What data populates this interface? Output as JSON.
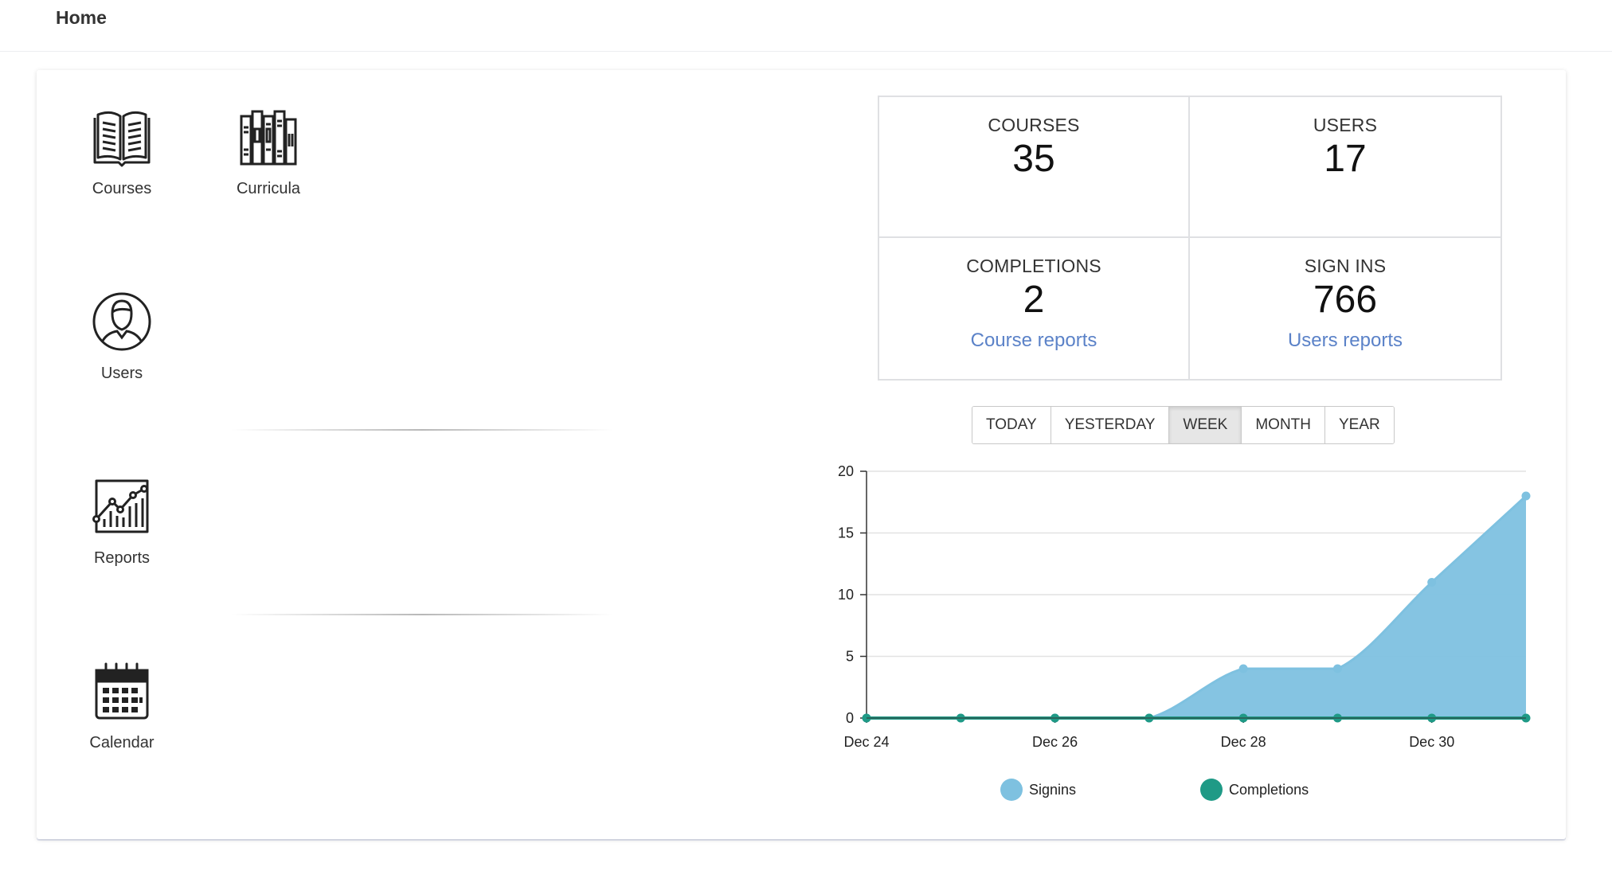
{
  "header": {
    "title": "Home"
  },
  "tiles": [
    {
      "label": "Courses",
      "icon": "open-book-icon"
    },
    {
      "label": "Curricula",
      "icon": "bookshelf-icon"
    },
    {
      "label": "Users",
      "icon": "user-avatar-icon"
    },
    {
      "label": "Reports",
      "icon": "line-chart-icon"
    },
    {
      "label": "Calendar",
      "icon": "calendar-icon"
    }
  ],
  "stats": {
    "courses": {
      "label": "COURSES",
      "value": "35"
    },
    "users": {
      "label": "USERS",
      "value": "17"
    },
    "completions": {
      "label": "COMPLETIONS",
      "value": "2",
      "link": "Course reports"
    },
    "signins": {
      "label": "SIGN INS",
      "value": "766",
      "link": "Users reports"
    }
  },
  "range_buttons": [
    {
      "label": "TODAY",
      "active": false
    },
    {
      "label": "YESTERDAY",
      "active": false
    },
    {
      "label": "WEEK",
      "active": true
    },
    {
      "label": "MONTH",
      "active": false
    },
    {
      "label": "YEAR",
      "active": false
    }
  ],
  "chart_data": {
    "type": "area",
    "x": [
      "Dec 24",
      "Dec 25",
      "Dec 26",
      "Dec 27",
      "Dec 28",
      "Dec 29",
      "Dec 30",
      "Dec 31"
    ],
    "x_tick_labels": [
      "Dec 24",
      "Dec 26",
      "Dec 28",
      "Dec 30"
    ],
    "series": [
      {
        "name": "Signins",
        "values": [
          0,
          0,
          0,
          0,
          4,
          4,
          11,
          18
        ],
        "color": "#7ec1e0"
      },
      {
        "name": "Completions",
        "values": [
          0,
          0,
          0,
          0,
          0,
          0,
          0,
          0
        ],
        "color": "#1f9a86"
      }
    ],
    "ylim": [
      0,
      20
    ],
    "y_ticks": [
      0,
      5,
      10,
      15,
      20
    ],
    "grid": true,
    "legend": "bottom"
  }
}
